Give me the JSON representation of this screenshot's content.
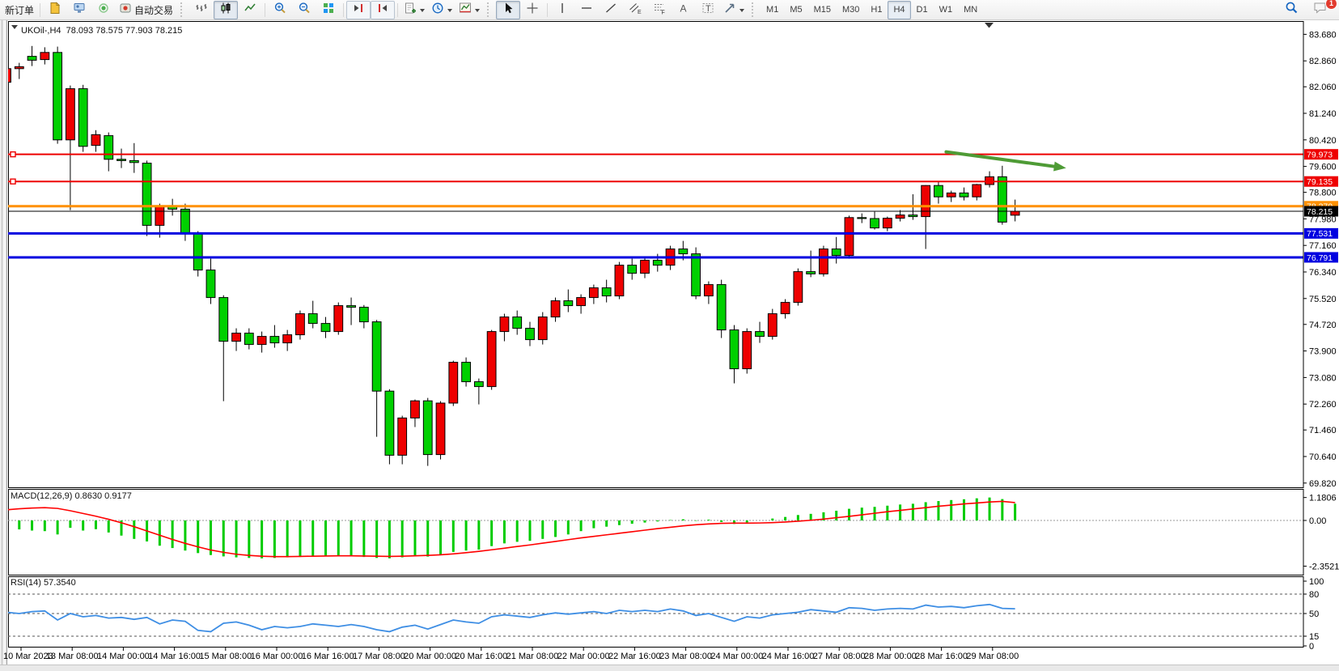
{
  "toolbar": {
    "new_order": "新订单",
    "auto_trading": "自动交易",
    "timeframes": [
      "M1",
      "M5",
      "M15",
      "M30",
      "H1",
      "H4",
      "D1",
      "W1",
      "MN"
    ],
    "active_timeframe": "H4",
    "notification_badge": "1",
    "icon_glyphs": {
      "channel": "E",
      "fibonacci": "F",
      "text": "A",
      "label": "T"
    }
  },
  "chart": {
    "title_line": "UKOil-,H4  78.093 78.575 77.903 78.215",
    "macd_label": "MACD(12,26,9) 0.8630 0.9177",
    "rsi_label": "RSI(14) 57.3540"
  },
  "chart_data": {
    "type": "candlestick",
    "symbol": "UKOil-",
    "timeframe": "H4",
    "ohlc_display": {
      "open": "78.093",
      "high": "78.575",
      "low": "77.903",
      "close": "78.215"
    },
    "ylim": [
      69.5,
      84.09
    ],
    "price_axis": [
      "83.680",
      "82.860",
      "82.060",
      "81.240",
      "80.420",
      "79.600",
      "78.800",
      "77.980",
      "77.160",
      "76.340",
      "75.520",
      "74.720",
      "73.900",
      "73.080",
      "72.260",
      "71.460",
      "70.640",
      "69.820"
    ],
    "x_tick_labels": [
      "10 Mar 2023",
      "13 Mar 08:00",
      "14 Mar 00:00",
      "14 Mar 16:00",
      "15 Mar 08:00",
      "16 Mar 00:00",
      "16 Mar 16:00",
      "17 Mar 08:00",
      "20 Mar 00:00",
      "20 Mar 16:00",
      "21 Mar 08:00",
      "22 Mar 00:00",
      "22 Mar 16:00",
      "23 Mar 08:00",
      "24 Mar 00:00",
      "24 Mar 16:00",
      "27 Mar 08:00",
      "28 Mar 00:00",
      "28 Mar 16:00",
      "29 Mar 08:00"
    ],
    "candles_ohlc": [
      [
        82.2,
        82.75,
        81.95,
        82.62
      ],
      [
        82.62,
        82.8,
        82.3,
        82.68
      ],
      [
        83.0,
        83.32,
        82.7,
        82.88
      ],
      [
        82.9,
        83.28,
        82.75,
        83.12
      ],
      [
        83.12,
        83.3,
        80.3,
        80.42
      ],
      [
        80.42,
        82.1,
        78.25,
        82.0
      ],
      [
        82.0,
        82.12,
        80.05,
        80.22
      ],
      [
        80.25,
        80.72,
        80.05,
        80.58
      ],
      [
        80.55,
        80.65,
        79.45,
        79.82
      ],
      [
        79.82,
        80.15,
        79.55,
        79.78
      ],
      [
        79.78,
        80.32,
        79.4,
        79.72
      ],
      [
        79.7,
        79.78,
        77.45,
        77.78
      ],
      [
        77.78,
        78.45,
        77.4,
        78.37
      ],
      [
        78.37,
        78.6,
        78.08,
        78.28
      ],
      [
        78.28,
        78.45,
        77.3,
        77.53
      ],
      [
        77.53,
        77.6,
        76.2,
        76.4
      ],
      [
        76.4,
        76.75,
        75.35,
        75.55
      ],
      [
        75.55,
        75.62,
        72.35,
        74.2
      ],
      [
        74.2,
        74.6,
        73.9,
        74.45
      ],
      [
        74.45,
        74.6,
        73.95,
        74.1
      ],
      [
        74.1,
        74.5,
        73.85,
        74.35
      ],
      [
        74.35,
        74.7,
        74.0,
        74.15
      ],
      [
        74.15,
        74.55,
        73.9,
        74.4
      ],
      [
        74.4,
        75.15,
        74.25,
        75.05
      ],
      [
        75.05,
        75.45,
        74.6,
        74.75
      ],
      [
        74.75,
        74.95,
        74.3,
        74.5
      ],
      [
        74.5,
        75.4,
        74.4,
        75.3
      ],
      [
        75.3,
        75.55,
        74.7,
        75.25
      ],
      [
        75.25,
        75.32,
        74.6,
        74.8
      ],
      [
        74.8,
        74.86,
        71.25,
        72.66
      ],
      [
        72.66,
        72.72,
        70.4,
        70.68
      ],
      [
        70.68,
        71.9,
        70.4,
        71.83
      ],
      [
        71.83,
        72.4,
        71.55,
        72.36
      ],
      [
        72.36,
        72.45,
        70.35,
        70.7
      ],
      [
        70.7,
        72.35,
        70.55,
        72.29
      ],
      [
        72.29,
        73.6,
        72.2,
        73.55
      ],
      [
        73.55,
        73.7,
        72.8,
        72.95
      ],
      [
        72.95,
        73.05,
        72.25,
        72.8
      ],
      [
        72.8,
        74.55,
        72.7,
        74.5
      ],
      [
        74.5,
        75.05,
        74.2,
        74.95
      ],
      [
        74.95,
        75.15,
        74.4,
        74.6
      ],
      [
        74.6,
        74.8,
        74.05,
        74.25
      ],
      [
        74.25,
        75.1,
        74.1,
        74.95
      ],
      [
        74.95,
        75.55,
        74.8,
        75.45
      ],
      [
        75.45,
        75.8,
        75.1,
        75.3
      ],
      [
        75.3,
        75.65,
        75.05,
        75.55
      ],
      [
        75.55,
        75.95,
        75.35,
        75.85
      ],
      [
        75.85,
        76.1,
        75.4,
        75.6
      ],
      [
        75.6,
        76.65,
        75.5,
        76.55
      ],
      [
        76.55,
        76.75,
        76.1,
        76.3
      ],
      [
        76.3,
        76.8,
        76.15,
        76.7
      ],
      [
        76.7,
        76.9,
        76.35,
        76.55
      ],
      [
        76.55,
        77.15,
        76.4,
        77.05
      ],
      [
        77.05,
        77.3,
        76.7,
        76.9
      ],
      [
        76.9,
        77.1,
        75.5,
        75.6
      ],
      [
        75.6,
        76.05,
        75.35,
        75.95
      ],
      [
        75.95,
        76.1,
        74.3,
        74.55
      ],
      [
        74.55,
        74.7,
        72.9,
        73.35
      ],
      [
        73.35,
        74.6,
        73.2,
        74.5
      ],
      [
        74.5,
        74.8,
        74.15,
        74.35
      ],
      [
        74.35,
        75.2,
        74.25,
        75.05
      ],
      [
        75.05,
        75.5,
        74.9,
        75.4
      ],
      [
        75.4,
        76.45,
        75.3,
        76.35
      ],
      [
        76.35,
        77.0,
        76.18,
        76.28
      ],
      [
        76.28,
        77.15,
        76.2,
        77.05
      ],
      [
        77.05,
        77.42,
        76.6,
        76.85
      ],
      [
        76.85,
        78.08,
        76.75,
        78.02
      ],
      [
        78.02,
        78.15,
        77.85,
        77.99
      ],
      [
        77.99,
        78.2,
        77.65,
        77.7
      ],
      [
        77.7,
        78.05,
        77.6,
        78.0
      ],
      [
        78.0,
        78.25,
        77.9,
        78.1
      ],
      [
        78.1,
        78.74,
        77.95,
        78.05
      ],
      [
        78.05,
        79.02,
        77.05,
        79.01
      ],
      [
        79.01,
        79.12,
        78.45,
        78.66
      ],
      [
        78.66,
        78.85,
        78.5,
        78.78
      ],
      [
        78.78,
        78.95,
        78.55,
        78.66
      ],
      [
        78.66,
        79.06,
        78.55,
        79.04
      ],
      [
        79.04,
        79.45,
        78.95,
        79.28
      ],
      [
        79.28,
        79.62,
        77.8,
        77.88
      ],
      [
        78.093,
        78.575,
        77.903,
        78.215
      ]
    ],
    "hlines": [
      {
        "price": 79.973,
        "label": "79.973",
        "color": "#EE0000",
        "width": 2,
        "handle": true
      },
      {
        "price": 79.135,
        "label": "79.135",
        "color": "#EE0000",
        "width": 2,
        "handle": true
      },
      {
        "price": 78.37,
        "label": "78.370",
        "color": "#FF9000",
        "width": 3,
        "handle": false
      },
      {
        "price": 77.531,
        "label": "77.531",
        "color": "#0000E0",
        "width": 3,
        "handle": false
      },
      {
        "price": 76.791,
        "label": "76.791",
        "color": "#0000E0",
        "width": 3,
        "handle": false
      }
    ],
    "current_price": 78.215,
    "current_price_label": "78.215",
    "arrow_annotation": {
      "i1": 73.6,
      "p1": 80.05,
      "i2": 83.0,
      "p2": 79.55
    },
    "colors": {
      "up": "#EE0000",
      "down": "#00D000",
      "wick": "#000000",
      "macd_hist": "#00CC00",
      "macd_signal": "#FF0000",
      "rsi_line": "#3E8EE4",
      "arrow": "#4E9B35"
    },
    "macd": {
      "axis": [
        "1.1806",
        "0.00",
        "-2.3521"
      ],
      "histogram": [
        -0.42,
        -0.46,
        -0.52,
        -0.55,
        -0.72,
        -0.38,
        -0.52,
        -0.45,
        -0.62,
        -0.78,
        -0.95,
        -1.08,
        -1.3,
        -1.42,
        -1.55,
        -1.68,
        -1.78,
        -1.85,
        -1.9,
        -1.93,
        -1.95,
        -1.93,
        -1.9,
        -1.88,
        -1.86,
        -1.84,
        -1.82,
        -1.85,
        -1.88,
        -1.93,
        -1.95,
        -1.9,
        -1.84,
        -1.86,
        -1.78,
        -1.62,
        -1.55,
        -1.5,
        -1.32,
        -1.18,
        -1.1,
        -1.05,
        -0.95,
        -0.85,
        -0.72,
        -0.55,
        -0.4,
        -0.32,
        -0.24,
        -0.17,
        -0.11,
        -0.05,
        0.02,
        0.06,
        -0.02,
        0.04,
        -0.08,
        -0.18,
        -0.1,
        0.0,
        0.1,
        0.18,
        0.28,
        0.34,
        0.42,
        0.5,
        0.6,
        0.66,
        0.7,
        0.76,
        0.82,
        0.86,
        0.94,
        1.0,
        1.05,
        1.09,
        1.14,
        1.1806,
        1.1,
        0.863
      ],
      "signal": [
        0.55,
        0.6,
        0.64,
        0.66,
        0.62,
        0.5,
        0.36,
        0.22,
        0.06,
        -0.12,
        -0.32,
        -0.54,
        -0.76,
        -0.98,
        -1.18,
        -1.36,
        -1.52,
        -1.64,
        -1.74,
        -1.8,
        -1.84,
        -1.86,
        -1.86,
        -1.85,
        -1.84,
        -1.83,
        -1.82,
        -1.82,
        -1.83,
        -1.84,
        -1.85,
        -1.84,
        -1.82,
        -1.8,
        -1.77,
        -1.72,
        -1.66,
        -1.59,
        -1.51,
        -1.43,
        -1.34,
        -1.26,
        -1.17,
        -1.08,
        -0.99,
        -0.9,
        -0.82,
        -0.74,
        -0.66,
        -0.58,
        -0.5,
        -0.42,
        -0.35,
        -0.28,
        -0.22,
        -0.18,
        -0.15,
        -0.14,
        -0.14,
        -0.13,
        -0.11,
        -0.08,
        -0.04,
        0.01,
        0.07,
        0.14,
        0.21,
        0.29,
        0.37,
        0.45,
        0.52,
        0.59,
        0.66,
        0.73,
        0.79,
        0.85,
        0.9,
        0.95,
        0.98,
        0.9177
      ]
    },
    "rsi": {
      "levels": [
        80,
        50,
        15
      ],
      "axis": [
        "100",
        "80",
        "50",
        "15",
        "0"
      ],
      "values": [
        52,
        50,
        53,
        54,
        40,
        50,
        45,
        47,
        43,
        44,
        41,
        44,
        34,
        40,
        38,
        24,
        22,
        35,
        37,
        32,
        25,
        30,
        28,
        30,
        34,
        32,
        30,
        33,
        30,
        25,
        22,
        29,
        32,
        26,
        33,
        40,
        37,
        35,
        45,
        48,
        46,
        44,
        48,
        51,
        49,
        51,
        53,
        50,
        55,
        53,
        55,
        53,
        57,
        54,
        47,
        50,
        44,
        38,
        45,
        43,
        48,
        50,
        52,
        56,
        54,
        52,
        59,
        58,
        55,
        57,
        58,
        57,
        63,
        60,
        61,
        59,
        62,
        64,
        58,
        57.35
      ]
    }
  }
}
